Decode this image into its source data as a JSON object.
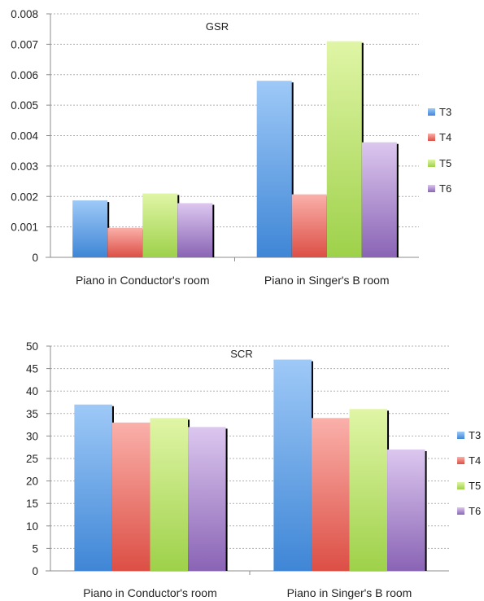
{
  "colors": {
    "T3": [
      "#9ec9f7",
      "#3f86d6"
    ],
    "T4": [
      "#fab0aa",
      "#dc4f45"
    ],
    "T5": [
      "#e0f5a6",
      "#9ed14a"
    ],
    "T6": [
      "#dcc7ef",
      "#8a64b5"
    ],
    "grid": "#b0b0b0",
    "shadow": "#000000"
  },
  "chart_data": [
    {
      "type": "bar",
      "title": "GSR",
      "categories": [
        "Piano in Conductor's room",
        "Piano in Singer's B room"
      ],
      "series": [
        {
          "name": "T3",
          "values": [
            0.00187,
            0.0058
          ]
        },
        {
          "name": "T4",
          "values": [
            0.00097,
            0.00207
          ]
        },
        {
          "name": "T5",
          "values": [
            0.0021,
            0.0071
          ]
        },
        {
          "name": "T6",
          "values": [
            0.00178,
            0.00378
          ]
        }
      ],
      "yticks": [
        "0",
        "0.001",
        "0.002",
        "0.003",
        "0.004",
        "0.005",
        "0.006",
        "0.007",
        "0.008"
      ],
      "ylim": [
        0,
        0.008
      ],
      "grid": true,
      "legend": "right"
    },
    {
      "type": "bar",
      "title": "SCR",
      "categories": [
        "Piano in Conductor's room",
        "Piano in Singer's B room"
      ],
      "series": [
        {
          "name": "T3",
          "values": [
            37,
            47
          ]
        },
        {
          "name": "T4",
          "values": [
            33,
            34
          ]
        },
        {
          "name": "T5",
          "values": [
            34,
            36
          ]
        },
        {
          "name": "T6",
          "values": [
            32,
            27
          ]
        }
      ],
      "yticks": [
        "0",
        "5",
        "10",
        "15",
        "20",
        "25",
        "30",
        "35",
        "40",
        "45",
        "50"
      ],
      "ylim": [
        0,
        50
      ],
      "grid": true,
      "legend": "right"
    }
  ]
}
